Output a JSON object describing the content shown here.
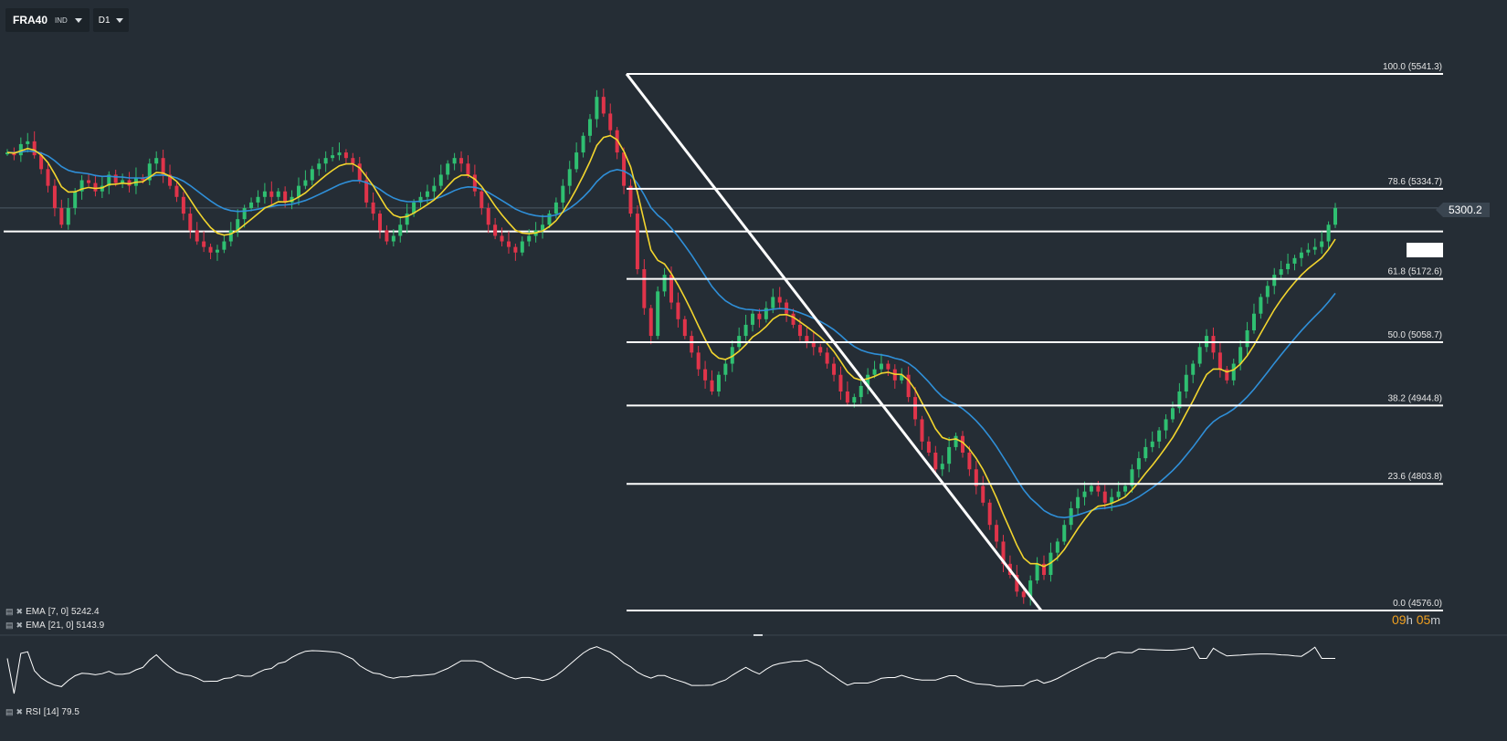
{
  "toolbar": {
    "symbol": "FRA40",
    "symbol_type": "IND",
    "timeframe": "D1",
    "dropdown_icon": "caret-down-icon"
  },
  "price": {
    "current_label": "5300.2",
    "current_value": 5300.2,
    "countdown_hours": "09",
    "countdown_h_unit": "h",
    "countdown_minutes": "05",
    "countdown_m_unit": "m"
  },
  "legends": {
    "ema7": {
      "name": "EMA",
      "params": "[7, 0]",
      "value": "5242.4",
      "color": "#f2d52e"
    },
    "ema21": {
      "name": "EMA",
      "params": "[21, 0]",
      "value": "5143.9",
      "color": "#2f8fd8"
    },
    "rsi": {
      "name": "RSI",
      "params": "[14]",
      "value": "79.5",
      "color": "#ffffff"
    },
    "icons": [
      "bars-icon",
      "close-icon"
    ]
  },
  "colors": {
    "background": "#252d35",
    "bull": "#2fbf71",
    "bear": "#e0344a",
    "fib_line": "#ffffff"
  },
  "chart_data": {
    "type": "candlestick",
    "symbol": "FRA40",
    "timeframe": "D1",
    "y_axis_scale": "linear",
    "fibonacci": {
      "high": 5541.3,
      "low": 4576.0,
      "levels": [
        {
          "label": "100.0 (5541.3)",
          "ratio": 100.0,
          "value": 5541.3
        },
        {
          "label": "78.6 (5334.7)",
          "ratio": 78.6,
          "value": 5334.7
        },
        {
          "label": "61.8 (5172.6)",
          "ratio": 61.8,
          "value": 5172.6
        },
        {
          "label": "50.0 (5058.7)",
          "ratio": 50.0,
          "value": 5058.7
        },
        {
          "label": "38.2 (4944.8)",
          "ratio": 38.2,
          "value": 4944.8
        },
        {
          "label": "23.6 (4803.8)",
          "ratio": 23.6,
          "value": 4803.8
        },
        {
          "label": "0.0 (4576.0)",
          "ratio": 0.0,
          "value": 4576.0
        }
      ]
    },
    "horizontal_level": 5258,
    "closes": [
      5400,
      5395,
      5415,
      5420,
      5395,
      5370,
      5340,
      5300,
      5270,
      5300,
      5330,
      5350,
      5345,
      5330,
      5340,
      5360,
      5345,
      5350,
      5340,
      5355,
      5350,
      5380,
      5390,
      5360,
      5340,
      5320,
      5290,
      5260,
      5240,
      5230,
      5220,
      5225,
      5240,
      5260,
      5280,
      5300,
      5310,
      5320,
      5330,
      5320,
      5330,
      5310,
      5320,
      5340,
      5350,
      5370,
      5380,
      5390,
      5395,
      5400,
      5390,
      5380,
      5350,
      5310,
      5290,
      5260,
      5240,
      5250,
      5270,
      5290,
      5310,
      5320,
      5330,
      5340,
      5360,
      5380,
      5390,
      5380,
      5360,
      5330,
      5300,
      5270,
      5250,
      5240,
      5230,
      5220,
      5240,
      5250,
      5260,
      5270,
      5290,
      5310,
      5340,
      5370,
      5400,
      5430,
      5460,
      5500,
      5470,
      5440,
      5400,
      5340,
      5290,
      5190,
      5120,
      5070,
      5150,
      5180,
      5130,
      5100,
      5070,
      5040,
      5010,
      4990,
      4970,
      5000,
      5020,
      5050,
      5070,
      5090,
      5110,
      5100,
      5120,
      5140,
      5130,
      5110,
      5090,
      5070,
      5060,
      5050,
      5040,
      5020,
      5000,
      4970,
      4950,
      4960,
      4980,
      5000,
      5010,
      5020,
      5010,
      4990,
      5000,
      4960,
      4920,
      4880,
      4860,
      4830,
      4840,
      4870,
      4890,
      4860,
      4830,
      4800,
      4770,
      4730,
      4700,
      4660,
      4640,
      4610,
      4600,
      4630,
      4660,
      4640,
      4680,
      4700,
      4730,
      4760,
      4780,
      4790,
      4800,
      4790,
      4770,
      4780,
      4790,
      4800,
      4830,
      4850,
      4870,
      4880,
      4900,
      4920,
      4940,
      4970,
      5000,
      5020,
      5050,
      5070,
      5040,
      5010,
      4990,
      5020,
      5050,
      5080,
      5110,
      5140,
      5160,
      5180,
      5190,
      5200,
      5210,
      5220,
      5225,
      5230,
      5240,
      5270,
      5300.2
    ],
    "ema7": {
      "label": "EMA [7, 0]",
      "last_value": 5242.4
    },
    "ema21": {
      "label": "EMA [21, 0]",
      "last_value": 5143.9
    },
    "rsi": {
      "label": "RSI [14]",
      "last_value": 79.5
    }
  }
}
